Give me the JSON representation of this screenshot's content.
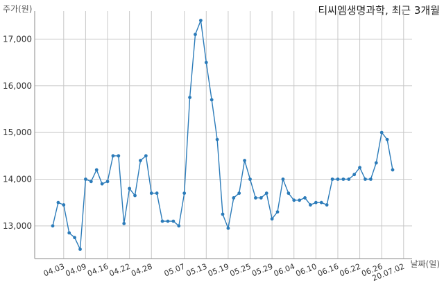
{
  "title": "티씨엠생명과학, 최근 3개월",
  "ylabel": "주가(원)",
  "xlabel": "날짜(일)",
  "chart_data": {
    "type": "line",
    "title": "티씨엠생명과학, 최근 3개월",
    "xlabel": "날짜(일)",
    "ylabel": "주가(원)",
    "ylim": [
      12300,
      17600
    ],
    "yticks": [
      13000,
      14000,
      15000,
      16000,
      17000
    ],
    "ytick_labels": [
      "13,000",
      "14,000",
      "15,000",
      "16,000",
      "17,000"
    ],
    "xtick_labels": [
      "04.03",
      "04.09",
      "04.16",
      "04.22",
      "04.28",
      "05.07",
      "05.13",
      "05.19",
      "05.25",
      "05.29",
      "06.04",
      "06.10",
      "06.16",
      "06.22",
      "06.26",
      "20.07.02"
    ],
    "xtick_index": [
      2,
      6,
      10,
      14,
      18,
      24,
      28,
      32,
      36,
      40,
      44,
      48,
      52,
      56,
      60,
      64
    ],
    "grid": true,
    "color": "#2b7bb9",
    "series": [
      {
        "values": [
          13000,
          13500,
          13450,
          12850,
          12750,
          12500,
          14000,
          13950,
          14200,
          13900,
          13950,
          14500,
          14500,
          13050,
          13800,
          13650,
          14400,
          14500,
          13700,
          13700,
          13100,
          13100,
          13100,
          13000,
          13700,
          15750,
          17100,
          17400,
          16500,
          15700,
          14850,
          13250,
          12950,
          13600,
          13700,
          14400,
          14000,
          13600,
          13600,
          13700,
          13150,
          13300,
          14000,
          13700,
          13550,
          13550,
          13600,
          13450,
          13500,
          13500,
          13450,
          14000,
          14000,
          14000,
          14000,
          14100,
          14250,
          14000,
          14000,
          14350,
          15000,
          14850,
          14200
        ]
      }
    ]
  }
}
